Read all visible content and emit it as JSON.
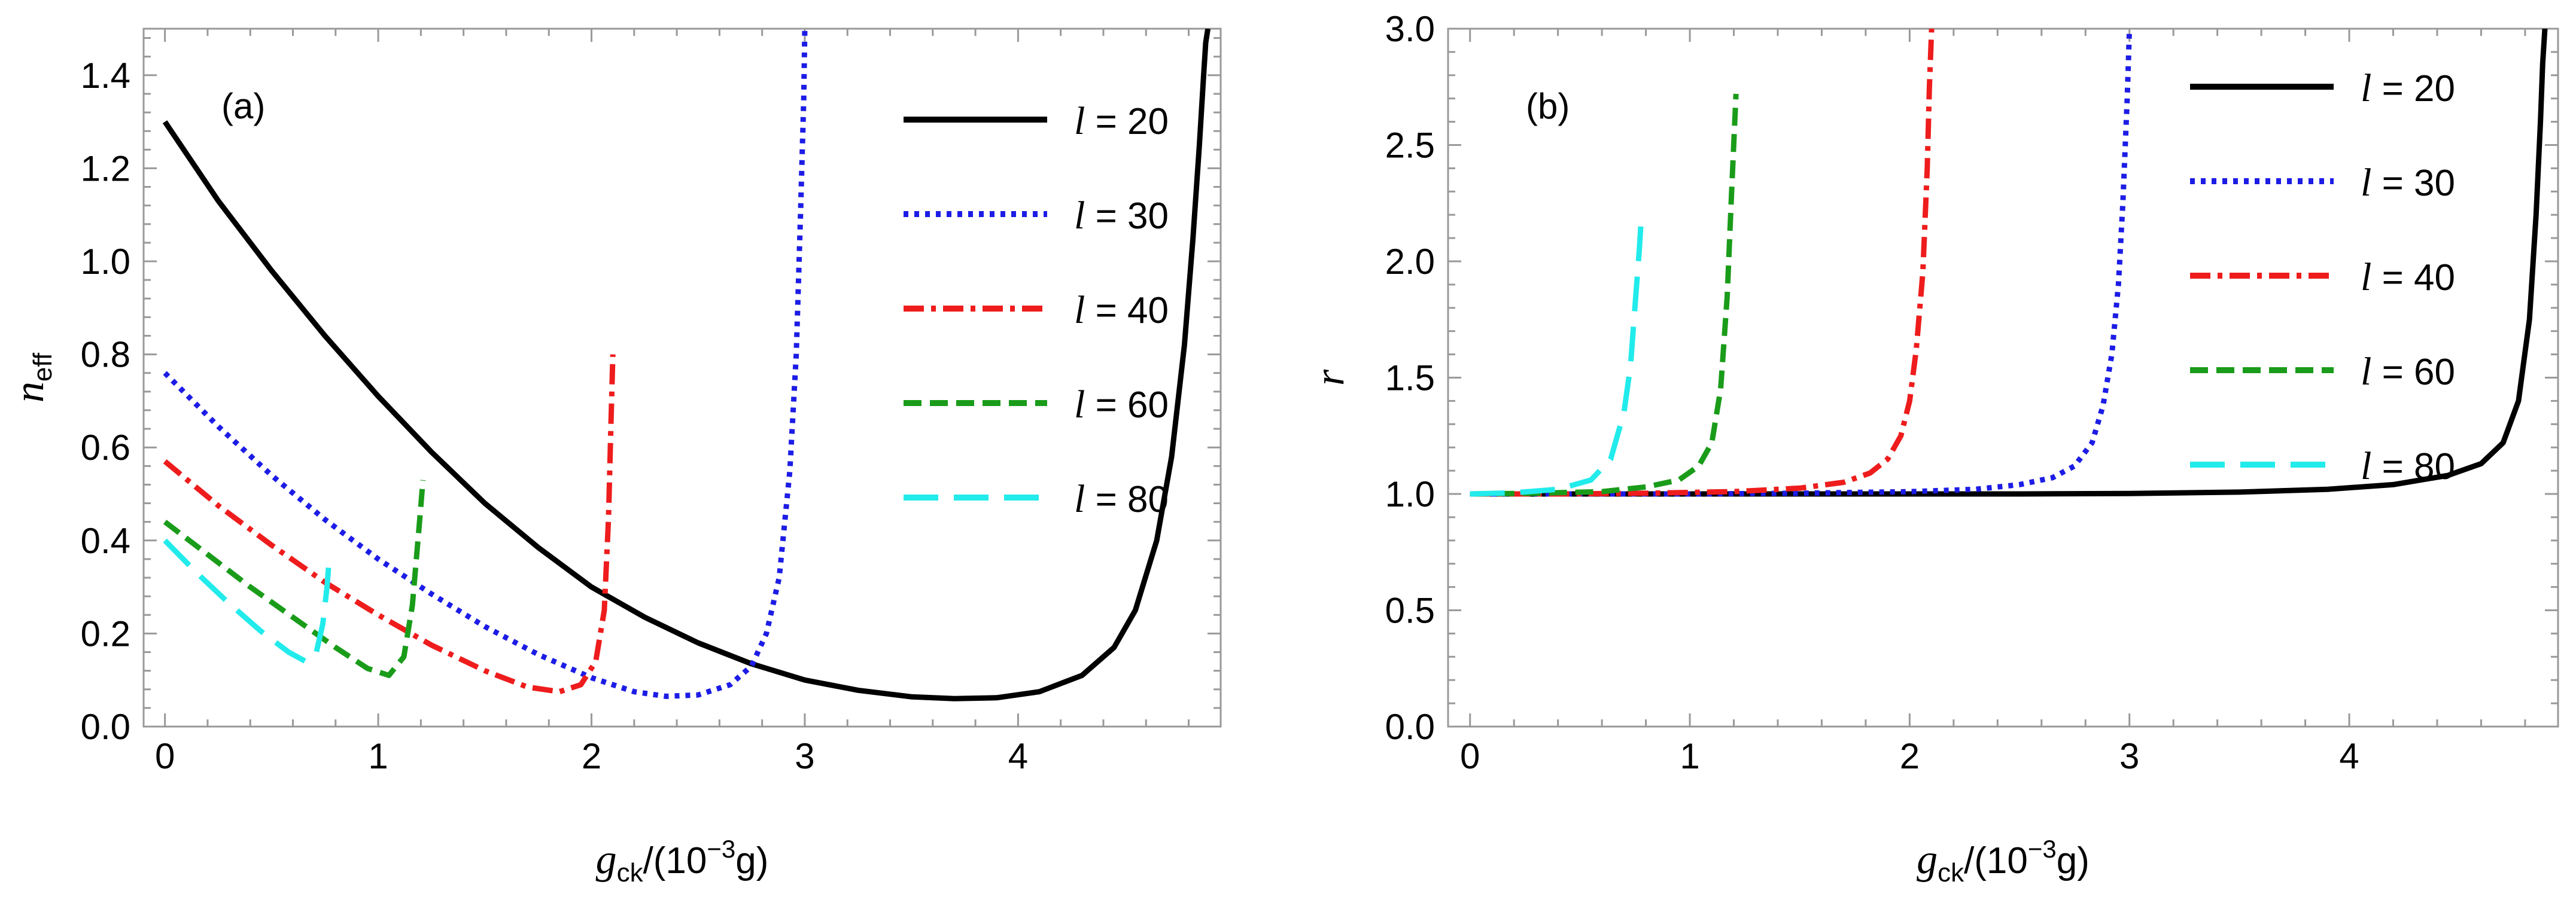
{
  "chart_data": [
    {
      "type": "line",
      "panel_label": "(a)",
      "xlabel": "g_ck/(10^-3 g)",
      "xlabel_parts": {
        "main": "g",
        "sub": "ck",
        "open": "/(10",
        "sup": "−3",
        "close": "g)"
      },
      "ylabel": "n_eff",
      "ylabel_parts": {
        "main": "n",
        "sub": "eff"
      },
      "xlim": [
        -0.1,
        4.95
      ],
      "ylim": [
        0.0,
        1.5
      ],
      "xticks": [
        "0",
        "1",
        "2",
        "3",
        "4"
      ],
      "yticks": [
        "0.0",
        "0.2",
        "0.4",
        "0.6",
        "0.8",
        "1.0",
        "1.2",
        "1.4"
      ],
      "legend_position": "top-right",
      "series": [
        {
          "name": "l = 20",
          "legend_l": "l",
          "legend_eq": " = 20",
          "color": "#000000",
          "style": "solid",
          "x": [
            0,
            0.25,
            0.5,
            0.75,
            1.0,
            1.25,
            1.5,
            1.75,
            2.0,
            2.25,
            2.5,
            2.75,
            3.0,
            3.25,
            3.5,
            3.7,
            3.9,
            4.1,
            4.3,
            4.45,
            4.55,
            4.65,
            4.72,
            4.78,
            4.82,
            4.85,
            4.87,
            4.88,
            4.89
          ],
          "y": [
            1.3,
            1.13,
            0.98,
            0.84,
            0.71,
            0.59,
            0.48,
            0.385,
            0.3,
            0.235,
            0.18,
            0.135,
            0.1,
            0.078,
            0.064,
            0.06,
            0.062,
            0.075,
            0.11,
            0.17,
            0.25,
            0.4,
            0.58,
            0.82,
            1.05,
            1.25,
            1.4,
            1.47,
            1.5
          ]
        },
        {
          "name": "l = 30",
          "legend_l": "l",
          "legend_eq": " = 30",
          "color": "#1c1ce6",
          "style": "dotted",
          "x": [
            0,
            0.25,
            0.5,
            0.75,
            1.0,
            1.25,
            1.5,
            1.75,
            2.0,
            2.2,
            2.35,
            2.5,
            2.65,
            2.75,
            2.82,
            2.88,
            2.93,
            2.96,
            2.98,
            2.995,
            3.0
          ],
          "y": [
            0.76,
            0.645,
            0.54,
            0.445,
            0.36,
            0.285,
            0.215,
            0.155,
            0.105,
            0.075,
            0.065,
            0.068,
            0.09,
            0.13,
            0.2,
            0.32,
            0.55,
            0.8,
            1.1,
            1.35,
            1.5
          ]
        },
        {
          "name": "l = 40",
          "legend_l": "l",
          "legend_eq": " = 40",
          "color": "#ee1c1c",
          "style": "dashdot",
          "x": [
            0,
            0.25,
            0.5,
            0.75,
            1.0,
            1.25,
            1.5,
            1.7,
            1.85,
            1.95,
            2.02,
            2.06,
            2.08,
            2.09,
            2.1
          ],
          "y": [
            0.57,
            0.475,
            0.39,
            0.31,
            0.24,
            0.175,
            0.12,
            0.085,
            0.075,
            0.09,
            0.14,
            0.25,
            0.45,
            0.63,
            0.8
          ]
        },
        {
          "name": "l = 60",
          "legend_l": "l",
          "legend_eq": " = 60",
          "color": "#1a9c1a",
          "style": "dashed",
          "x": [
            0,
            0.2,
            0.4,
            0.6,
            0.8,
            0.95,
            1.05,
            1.12,
            1.16,
            1.19,
            1.21
          ],
          "y": [
            0.44,
            0.37,
            0.3,
            0.235,
            0.17,
            0.125,
            0.11,
            0.15,
            0.26,
            0.42,
            0.53
          ]
        },
        {
          "name": "l = 80",
          "legend_l": "l",
          "legend_eq": " = 80",
          "color": "#22ebeb",
          "style": "longdash",
          "x": [
            0,
            0.15,
            0.3,
            0.45,
            0.58,
            0.66,
            0.71,
            0.74,
            0.76,
            0.77
          ],
          "y": [
            0.4,
            0.33,
            0.265,
            0.205,
            0.16,
            0.14,
            0.16,
            0.22,
            0.3,
            0.36
          ]
        }
      ]
    },
    {
      "type": "line",
      "panel_label": "(b)",
      "xlabel": "g_ck/(10^-3 g)",
      "xlabel_parts": {
        "main": "g",
        "sub": "ck",
        "open": "/(10",
        "sup": "−3",
        "close": "g)"
      },
      "ylabel": "r",
      "ylabel_parts": {
        "main": "r",
        "sub": ""
      },
      "xlim": [
        -0.1,
        4.95
      ],
      "ylim": [
        0.0,
        3.0
      ],
      "xticks": [
        "0",
        "1",
        "2",
        "3",
        "4"
      ],
      "yticks": [
        "0.0",
        "0.5",
        "1.0",
        "1.5",
        "2.0",
        "2.5",
        "3.0"
      ],
      "legend_position": "top-right",
      "series": [
        {
          "name": "l = 20",
          "legend_l": "l",
          "legend_eq": " = 20",
          "color": "#000000",
          "style": "solid",
          "x": [
            0,
            0.5,
            1.0,
            1.5,
            2.0,
            2.5,
            3.0,
            3.5,
            3.9,
            4.2,
            4.45,
            4.6,
            4.7,
            4.77,
            4.82,
            4.85,
            4.87,
            4.88,
            4.89
          ],
          "y": [
            1.0,
            1.0,
            1.0,
            1.0,
            1.0,
            1.0,
            1.002,
            1.008,
            1.02,
            1.04,
            1.08,
            1.13,
            1.22,
            1.4,
            1.75,
            2.2,
            2.6,
            2.85,
            3.0
          ]
        },
        {
          "name": "l = 30",
          "legend_l": "l",
          "legend_eq": " = 30",
          "color": "#1c1ce6",
          "style": "dotted",
          "x": [
            0,
            0.5,
            1.0,
            1.5,
            2.0,
            2.3,
            2.5,
            2.65,
            2.75,
            2.83,
            2.88,
            2.92,
            2.95,
            2.97,
            2.99,
            3.0
          ],
          "y": [
            1.0,
            1.0,
            1.0,
            1.003,
            1.01,
            1.02,
            1.04,
            1.07,
            1.12,
            1.22,
            1.38,
            1.6,
            1.9,
            2.25,
            2.7,
            3.0
          ]
        },
        {
          "name": "l = 40",
          "legend_l": "l",
          "legend_eq": " = 40",
          "color": "#ee1c1c",
          "style": "dashdot",
          "x": [
            0,
            0.4,
            0.8,
            1.2,
            1.5,
            1.7,
            1.82,
            1.9,
            1.96,
            2.0,
            2.03,
            2.06,
            2.08,
            2.09,
            2.1
          ],
          "y": [
            1.0,
            1.0,
            1.003,
            1.01,
            1.025,
            1.05,
            1.09,
            1.15,
            1.25,
            1.4,
            1.62,
            1.95,
            2.4,
            2.75,
            3.0
          ]
        },
        {
          "name": "l = 60",
          "legend_l": "l",
          "legend_eq": " = 60",
          "color": "#1a9c1a",
          "style": "dashed",
          "x": [
            0,
            0.3,
            0.6,
            0.8,
            0.95,
            1.04,
            1.1,
            1.14,
            1.17,
            1.19,
            1.21
          ],
          "y": [
            1.0,
            1.003,
            1.01,
            1.03,
            1.06,
            1.12,
            1.22,
            1.45,
            1.85,
            2.3,
            2.72
          ]
        },
        {
          "name": "l = 80",
          "legend_l": "l",
          "legend_eq": " = 80",
          "color": "#22ebeb",
          "style": "longdash",
          "x": [
            0,
            0.2,
            0.4,
            0.55,
            0.64,
            0.7,
            0.73,
            0.75,
            0.77,
            0.78
          ],
          "y": [
            1.0,
            1.005,
            1.02,
            1.06,
            1.15,
            1.35,
            1.55,
            1.8,
            2.05,
            2.2
          ]
        }
      ]
    }
  ]
}
